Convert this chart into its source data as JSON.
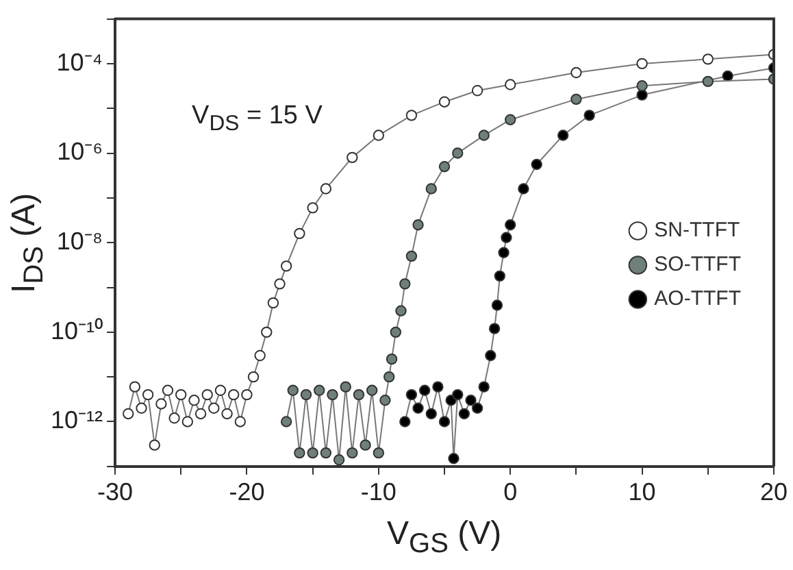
{
  "chart_data": {
    "type": "line",
    "xlabel": "V$_{GS}$ (V)",
    "ylabel": "I$_{DS}$ (A)",
    "annotations": [
      "V$_{DS}$ = 15 V"
    ],
    "log": "y",
    "grid": false,
    "legend": "right",
    "marker": "circle",
    "line_style": "solid",
    "xlim": [
      -30,
      20
    ],
    "xticks": [
      -30,
      {
        "value": -25,
        "label": null
      },
      -20,
      {
        "value": -15,
        "label": null
      },
      -10,
      {
        "value": -5,
        "label": null
      },
      0,
      {
        "value": 5,
        "label": null
      },
      10,
      {
        "value": 15,
        "label": null
      },
      20
    ],
    "ylim": [
      1e-13,
      0.001
    ],
    "yticks": [
      {
        "value": 1e-13,
        "label": null
      },
      {
        "value": 1e-12,
        "label": "10⁻¹²"
      },
      {
        "value": 1e-11,
        "label": null
      },
      {
        "value": 1e-10,
        "label": "10⁻¹⁰"
      },
      {
        "value": 1e-09,
        "label": null
      },
      {
        "value": 1e-08,
        "label": "10⁻⁸"
      },
      {
        "value": 1e-07,
        "label": null
      },
      {
        "value": 1e-06,
        "label": "10⁻⁶"
      },
      {
        "value": 1e-05,
        "label": null
      },
      {
        "value": 0.0001,
        "label": "10⁻⁴"
      },
      {
        "value": 0.001,
        "label": null
      }
    ],
    "series": [
      {
        "name": "SN-TTFT",
        "color": "#ffffff",
        "x": [
          -29,
          -28.5,
          -28,
          -27.5,
          -27,
          -26.5,
          -26,
          -25.5,
          -25,
          -24.5,
          -24,
          -23.5,
          -23,
          -22.5,
          -22,
          -21.5,
          -21,
          -20.5,
          -20,
          -19.5,
          -19,
          -18.5,
          -18,
          -17.5,
          -17,
          -16,
          -15,
          -14,
          -12,
          -10,
          -7.5,
          -5,
          -2.5,
          0,
          5,
          10,
          15,
          20
        ],
        "values": [
          1.5e-12,
          6e-12,
          2e-12,
          4e-12,
          3e-13,
          2.5e-12,
          5e-12,
          1.2e-12,
          4e-12,
          1e-12,
          3e-12,
          1.5e-12,
          4e-12,
          2e-12,
          5e-12,
          1.5e-12,
          4e-12,
          1e-12,
          4e-12,
          1e-11,
          3e-11,
          1e-10,
          4.5e-10,
          1.2e-09,
          3e-09,
          1.6e-08,
          6e-08,
          1.6e-07,
          8e-07,
          2.5e-06,
          7e-06,
          1.4e-05,
          2.5e-05,
          3.4e-05,
          6.3e-05,
          0.0001,
          0.000126,
          0.00016
        ]
      },
      {
        "name": "SO-TTFT",
        "color": "#6e8078",
        "x": [
          -17,
          -16.5,
          -16,
          -15.5,
          -15,
          -14.5,
          -14,
          -13.5,
          -13,
          -12.5,
          -12,
          -11.5,
          -11,
          -10.5,
          -10,
          -9.5,
          -9.2,
          -9,
          -8.7,
          -8.3,
          -8,
          -7.5,
          -7,
          -6,
          -5,
          -4,
          -2,
          0,
          5,
          10,
          15,
          20
        ],
        "values": [
          1e-12,
          5e-12,
          2e-13,
          4e-12,
          2e-13,
          5e-12,
          2e-13,
          4e-12,
          1.4e-13,
          6e-12,
          2e-13,
          4e-12,
          3e-13,
          5e-12,
          2e-13,
          3e-12,
          1e-11,
          2.5e-11,
          1e-10,
          3e-10,
          1.2e-09,
          5e-09,
          2.5e-08,
          1.6e-07,
          5e-07,
          1e-06,
          2.5e-06,
          5.6e-06,
          1.6e-05,
          3.2e-05,
          4e-05,
          4.5e-05
        ]
      },
      {
        "name": "AO-TTFT",
        "color": "#000000",
        "x": [
          -8,
          -7.5,
          -7,
          -6.5,
          -6,
          -5.5,
          -5,
          -4.5,
          -4.3,
          -4,
          -3.5,
          -3,
          -2.5,
          -2,
          -1.5,
          -1.2,
          -1,
          -0.8,
          -0.5,
          -0.3,
          0,
          1,
          2,
          4,
          6,
          10,
          16.5,
          20
        ],
        "values": [
          1e-12,
          4e-12,
          2e-12,
          5e-12,
          1.5e-12,
          6e-12,
          1e-12,
          3e-12,
          1.5e-13,
          4e-12,
          1.5e-12,
          3e-12,
          2e-12,
          6e-12,
          3e-11,
          1.2e-10,
          4e-10,
          1.8e-09,
          6e-09,
          1.3e-08,
          2.5e-08,
          1.6e-07,
          5.6e-07,
          2.5e-06,
          7e-06,
          2e-05,
          5.3e-05,
          8e-05
        ]
      }
    ]
  }
}
